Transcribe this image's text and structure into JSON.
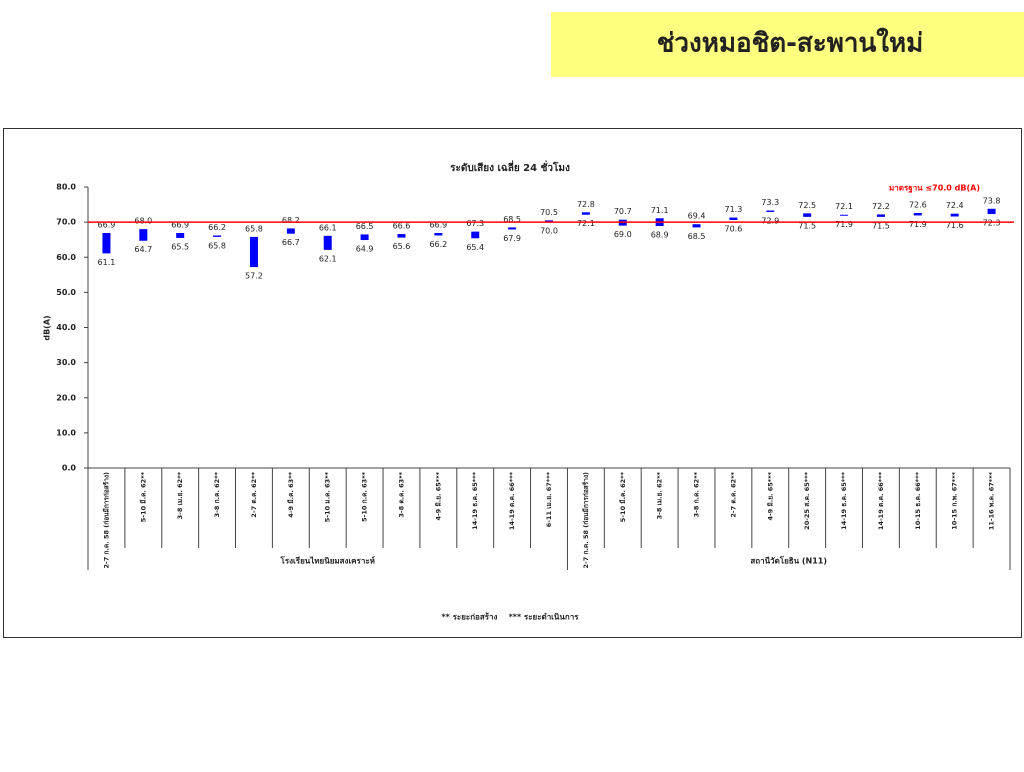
{
  "header": {
    "title": "ช่วงหมอชิต-สะพานใหม่"
  },
  "chart_data": {
    "type": "floating_bar",
    "title": "ระดับเสียง เฉลี่ย 24 ชั่วโมง",
    "y_label": "dB(A)",
    "color": "#0000ff",
    "ylim": [
      0,
      80
    ],
    "yticks": [
      {
        "value": 0,
        "label": "0.0"
      },
      {
        "value": 10,
        "label": "10.0"
      },
      {
        "value": 20,
        "label": "20.0"
      },
      {
        "value": 30,
        "label": "30.0"
      },
      {
        "value": 40,
        "label": "40.0"
      },
      {
        "value": 50,
        "label": "50.0"
      },
      {
        "value": 60,
        "label": "60.0"
      },
      {
        "value": 70,
        "label": "70.0"
      },
      {
        "value": 80,
        "label": "80.0"
      }
    ],
    "reference_line": {
      "value": 70,
      "label": "มาตรฐาน ≤70.0 dB(A)",
      "color": "#ff0000"
    },
    "groups": [
      {
        "name": "โรงเรียนไทยนิยมสงเคราะห์",
        "categories": [
          "2-7 ก.ค. 58 (ก่อนมีการก่อสร้าง)",
          "5-10 มี.ค. 62**",
          "3-8 เม.ย. 62**",
          "3-8 ก.ค. 62**",
          "2-7 ต.ค. 62**",
          "4-9 มี.ค. 63**",
          "5-10 ม.ค. 63**",
          "5-10 ก.ค. 63**",
          "3-8 ต.ค. 63**",
          "4-9 มิ.ย. 65***",
          "14-19 ธ.ค. 65***",
          "14-19 ต.ค. 66***",
          "6-11 เม.ย. 67***"
        ],
        "high": [
          66.9,
          68.0,
          66.9,
          66.2,
          65.8,
          68.2,
          66.1,
          66.5,
          66.6,
          66.9,
          67.3,
          68.5,
          70.5
        ],
        "high_labels": [
          "66.9",
          "68.0",
          "66.9",
          "66.2",
          "65.8",
          "68.2",
          "66.1",
          "66.5",
          "66.6",
          "66.9",
          "67.3",
          "68.5",
          "70.5"
        ],
        "low": [
          61.1,
          64.7,
          65.5,
          65.8,
          57.2,
          66.7,
          62.1,
          64.9,
          65.6,
          66.2,
          65.4,
          67.9,
          70.0
        ],
        "low_labels": [
          "61.1",
          "64.7",
          "65.5",
          "65.8",
          "57.2",
          "66.7",
          "62.1",
          "64.9",
          "65.6",
          "66.2",
          "65.4",
          "67.9",
          "70.0"
        ]
      },
      {
        "name": "สถานีวัดโยธิน (N11)",
        "categories": [
          "2-7 ก.ค. 58 (ก่อนมีการก่อสร้าง)",
          "5-10 มี.ค. 62**",
          "3-8 เม.ย. 62**",
          "3-8 ก.ค. 62**",
          "2-7 ต.ค. 62**",
          "4-9 มิ.ย. 65***",
          "20-25 ส.ค. 65***",
          "14-19 ธ.ค. 65***",
          "14-19 ต.ค. 66***",
          "10-15 ธ.ค. 66***",
          "10-15 ก.พ. 67***",
          "11-16 พ.ค. 67***"
        ],
        "high": [
          72.8,
          70.7,
          71.1,
          69.4,
          71.3,
          73.3,
          72.5,
          72.1,
          72.2,
          72.6,
          72.4,
          73.8
        ],
        "high_labels": [
          "72.8",
          "70.7",
          "71.1",
          "69.4",
          "71.3",
          "73.3",
          "72.5",
          "72.1",
          "72.2",
          "72.6",
          "72.4",
          "73.8"
        ],
        "low": [
          72.1,
          69.0,
          68.9,
          68.5,
          70.6,
          72.9,
          71.5,
          71.9,
          71.5,
          71.9,
          71.6,
          72.3
        ],
        "low_labels": [
          "72.1",
          "69.0",
          "68.9",
          "68.5",
          "70.6",
          "72.9",
          "71.5",
          "71.9",
          "71.5",
          "71.9",
          "71.6",
          "72.3"
        ]
      }
    ],
    "footnote": "** ระยะก่อสร้าง    *** ระยะดำเนินการ"
  }
}
